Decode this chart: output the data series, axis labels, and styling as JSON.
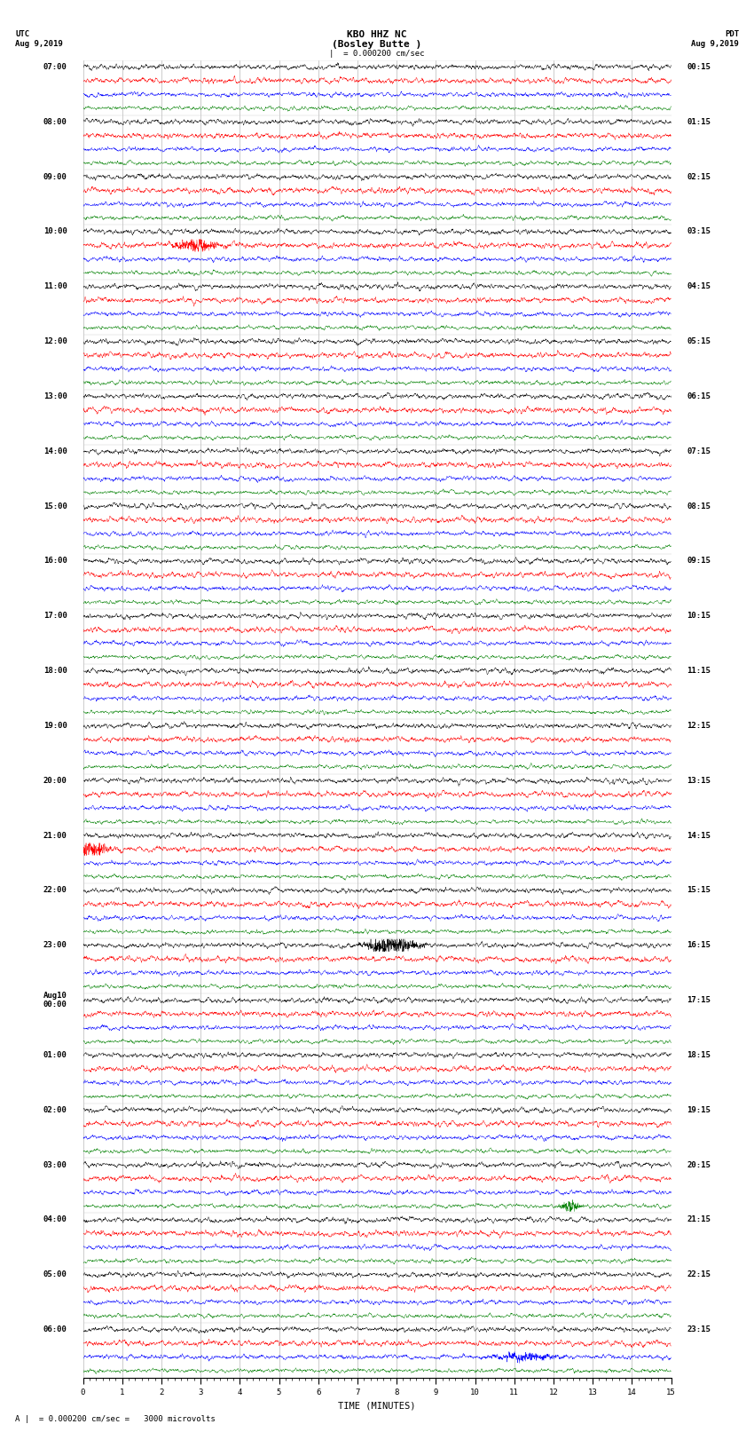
{
  "title_line1": "KBO HHZ NC",
  "title_line2": "(Bosley Butte )",
  "scale_label": "|  = 0.000200 cm/sec",
  "left_header": "UTC",
  "left_date": "Aug 9,2019",
  "right_header": "PDT",
  "right_date": "Aug 9,2019",
  "xlabel": "TIME (MINUTES)",
  "footer": "A |  = 0.000200 cm/sec =   3000 microvolts",
  "utc_labels": [
    "07:00",
    "08:00",
    "09:00",
    "10:00",
    "11:00",
    "12:00",
    "13:00",
    "14:00",
    "15:00",
    "16:00",
    "17:00",
    "18:00",
    "19:00",
    "20:00",
    "21:00",
    "22:00",
    "23:00",
    "Aug10\n00:00",
    "01:00",
    "02:00",
    "03:00",
    "04:00",
    "05:00",
    "06:00"
  ],
  "pdt_labels": [
    "00:15",
    "01:15",
    "02:15",
    "03:15",
    "04:15",
    "05:15",
    "06:15",
    "07:15",
    "08:15",
    "09:15",
    "10:15",
    "11:15",
    "12:15",
    "13:15",
    "14:15",
    "15:15",
    "16:15",
    "17:15",
    "18:15",
    "19:15",
    "20:15",
    "21:15",
    "22:15",
    "23:15"
  ],
  "trace_colors": [
    "black",
    "red",
    "blue",
    "green"
  ],
  "n_hours": 24,
  "traces_per_hour": 4,
  "minutes": 15,
  "bg_color": "white",
  "grid_color": "#888888",
  "label_fontsize": 6.5,
  "title_fontsize": 8,
  "trace_amplitude": 0.3,
  "trace_linewidth": 0.3,
  "samples_per_trace": 3000
}
